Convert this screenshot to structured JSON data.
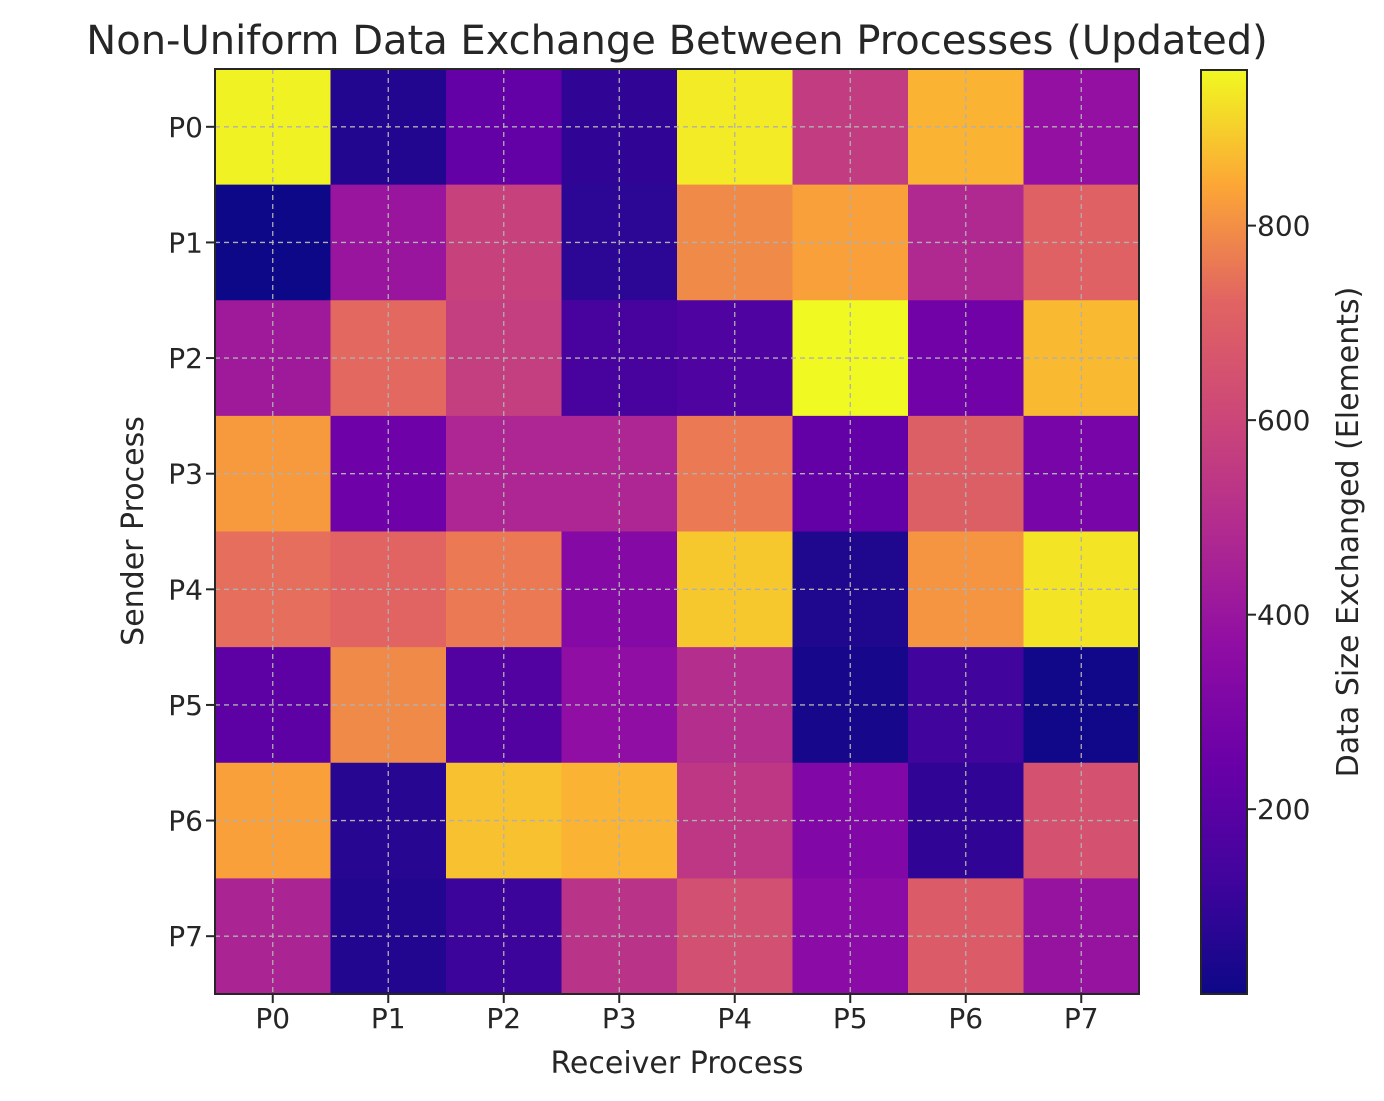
{
  "chart_data": {
    "type": "heatmap",
    "title": "Non-Uniform Data Exchange Between Processes (Updated)",
    "xlabel": "Receiver Process",
    "ylabel": "Sender Process",
    "x_categories": [
      "P0",
      "P1",
      "P2",
      "P3",
      "P4",
      "P5",
      "P6",
      "P7"
    ],
    "y_categories": [
      "P0",
      "P1",
      "P2",
      "P3",
      "P4",
      "P5",
      "P6",
      "P7"
    ],
    "values": [
      [
        950,
        60,
        230,
        90,
        940,
        560,
        860,
        380
      ],
      [
        10,
        400,
        580,
        80,
        790,
        830,
        480,
        710
      ],
      [
        420,
        730,
        570,
        150,
        170,
        960,
        270,
        870
      ],
      [
        820,
        260,
        470,
        470,
        760,
        230,
        700,
        290
      ],
      [
        740,
        720,
        760,
        330,
        890,
        50,
        810,
        930
      ],
      [
        210,
        790,
        180,
        370,
        500,
        30,
        130,
        20
      ],
      [
        830,
        70,
        880,
        860,
        540,
        320,
        90,
        650
      ],
      [
        460,
        60,
        120,
        520,
        640,
        350,
        690,
        390
      ]
    ],
    "colorbar": {
      "label": "Data Size Exchanged (Elements)",
      "ticks": [
        "200",
        "400",
        "600",
        "800"
      ],
      "range": [
        10,
        960
      ],
      "colormap": "plasma"
    },
    "grid": true
  }
}
